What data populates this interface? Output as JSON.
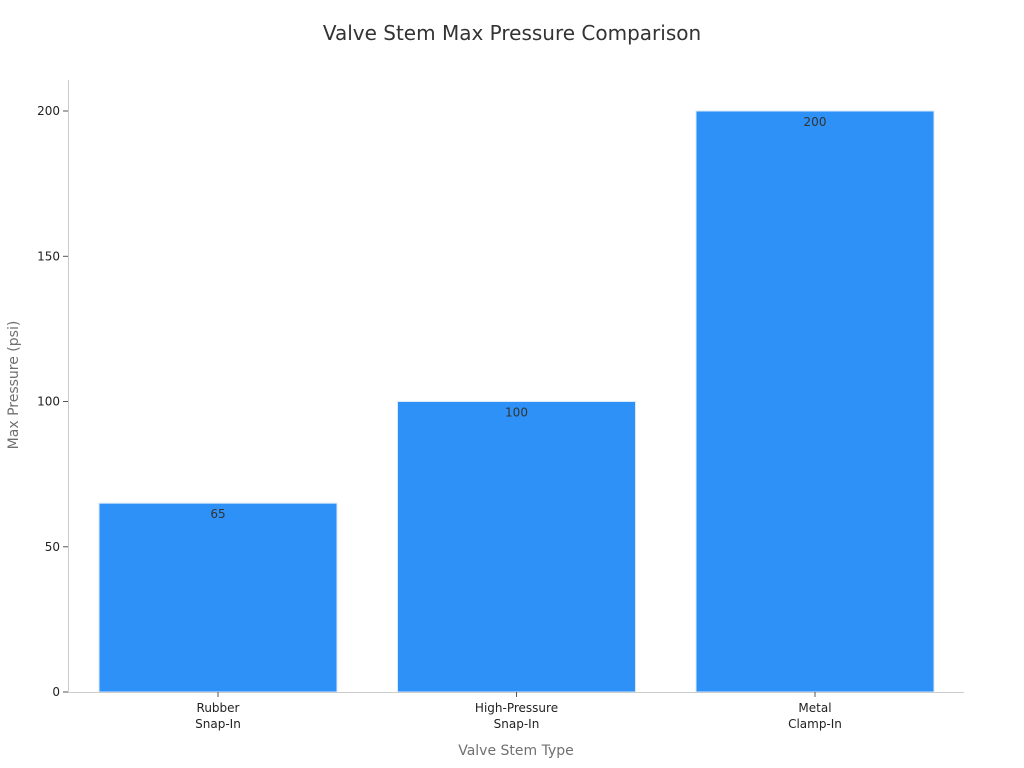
{
  "chart_data": {
    "type": "bar",
    "title": "Valve Stem Max Pressure Comparison",
    "xlabel": "Valve Stem Type",
    "ylabel": "Max Pressure (psi)",
    "categories": [
      [
        "Rubber",
        "Snap-In"
      ],
      [
        "High-Pressure",
        "Snap-In"
      ],
      [
        "Metal",
        "Clamp-In"
      ]
    ],
    "values": [
      65,
      100,
      200
    ],
    "data_labels": [
      "65",
      "100",
      "200"
    ],
    "yticks": [
      0,
      50,
      100,
      150,
      200
    ],
    "ytick_labels": [
      "0",
      "50",
      "100",
      "150",
      "200"
    ],
    "ylim": [
      0,
      210
    ],
    "grid": false,
    "bar_color": "#2e91f7",
    "bar_edge_color": "#d9e9fb"
  }
}
